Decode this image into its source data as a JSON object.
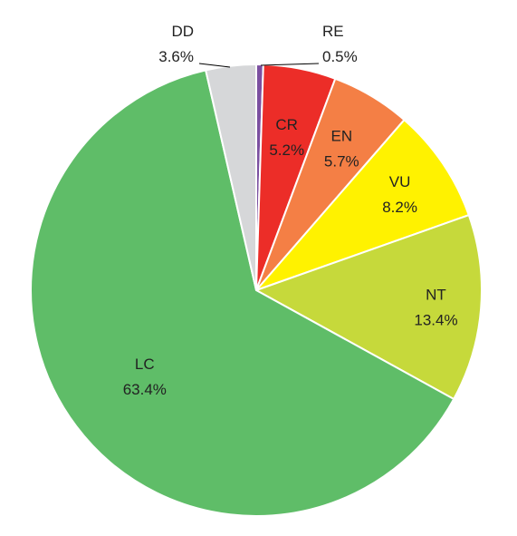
{
  "chart_data": {
    "type": "pie",
    "title": "",
    "start_angle_deg": 0,
    "direction": "clockwise",
    "slices": [
      {
        "name": "RE",
        "value": 0.5,
        "label": "0.5%",
        "color": "#7b4fa0"
      },
      {
        "name": "CR",
        "value": 5.2,
        "label": "5.2%",
        "color": "#ec2d28"
      },
      {
        "name": "EN",
        "value": 5.7,
        "label": "5.7%",
        "color": "#f47f45"
      },
      {
        "name": "VU",
        "value": 8.2,
        "label": "8.2%",
        "color": "#fff200"
      },
      {
        "name": "NT",
        "value": 13.4,
        "label": "13.4%",
        "color": "#c6d93b"
      },
      {
        "name": "LC",
        "value": 63.4,
        "label": "63.4%",
        "color": "#5fbd68"
      },
      {
        "name": "DD",
        "value": 3.6,
        "label": "3.6%",
        "color": "#d6d7d9"
      }
    ]
  }
}
